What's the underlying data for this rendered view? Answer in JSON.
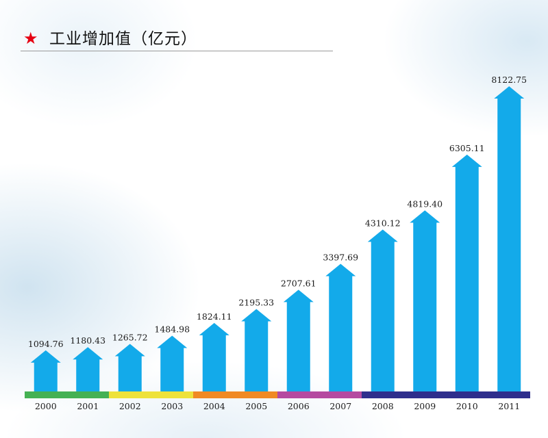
{
  "title": {
    "star": "★",
    "text": "工业增加值（亿元）"
  },
  "colors": {
    "bar": "#13aaea",
    "star": "#e60012",
    "baseline_segments": [
      "#45b153",
      "#eee23a",
      "#f08a24",
      "#b54aa0",
      "#2e2e8c"
    ]
  },
  "chart_data": {
    "type": "bar",
    "title": "工业增加值（亿元）",
    "xlabel": "",
    "ylabel": "",
    "categories": [
      "2000",
      "2001",
      "2002",
      "2003",
      "2004",
      "2005",
      "2006",
      "2007",
      "2008",
      "2009",
      "2010",
      "2011"
    ],
    "values": [
      1094.76,
      1180.43,
      1265.72,
      1484.98,
      1824.11,
      2195.33,
      2707.61,
      3397.69,
      4310.12,
      4819.4,
      6305.11,
      8122.75
    ],
    "value_labels": [
      "1094.76",
      "1180.43",
      "1265.72",
      "1484.98",
      "1824.11",
      "2195.33",
      "2707.61",
      "3397.69",
      "4310.12",
      "4819.40",
      "6305.11",
      "8122.75"
    ],
    "grid": false,
    "legend": "none",
    "bar_shape": "arrow"
  }
}
